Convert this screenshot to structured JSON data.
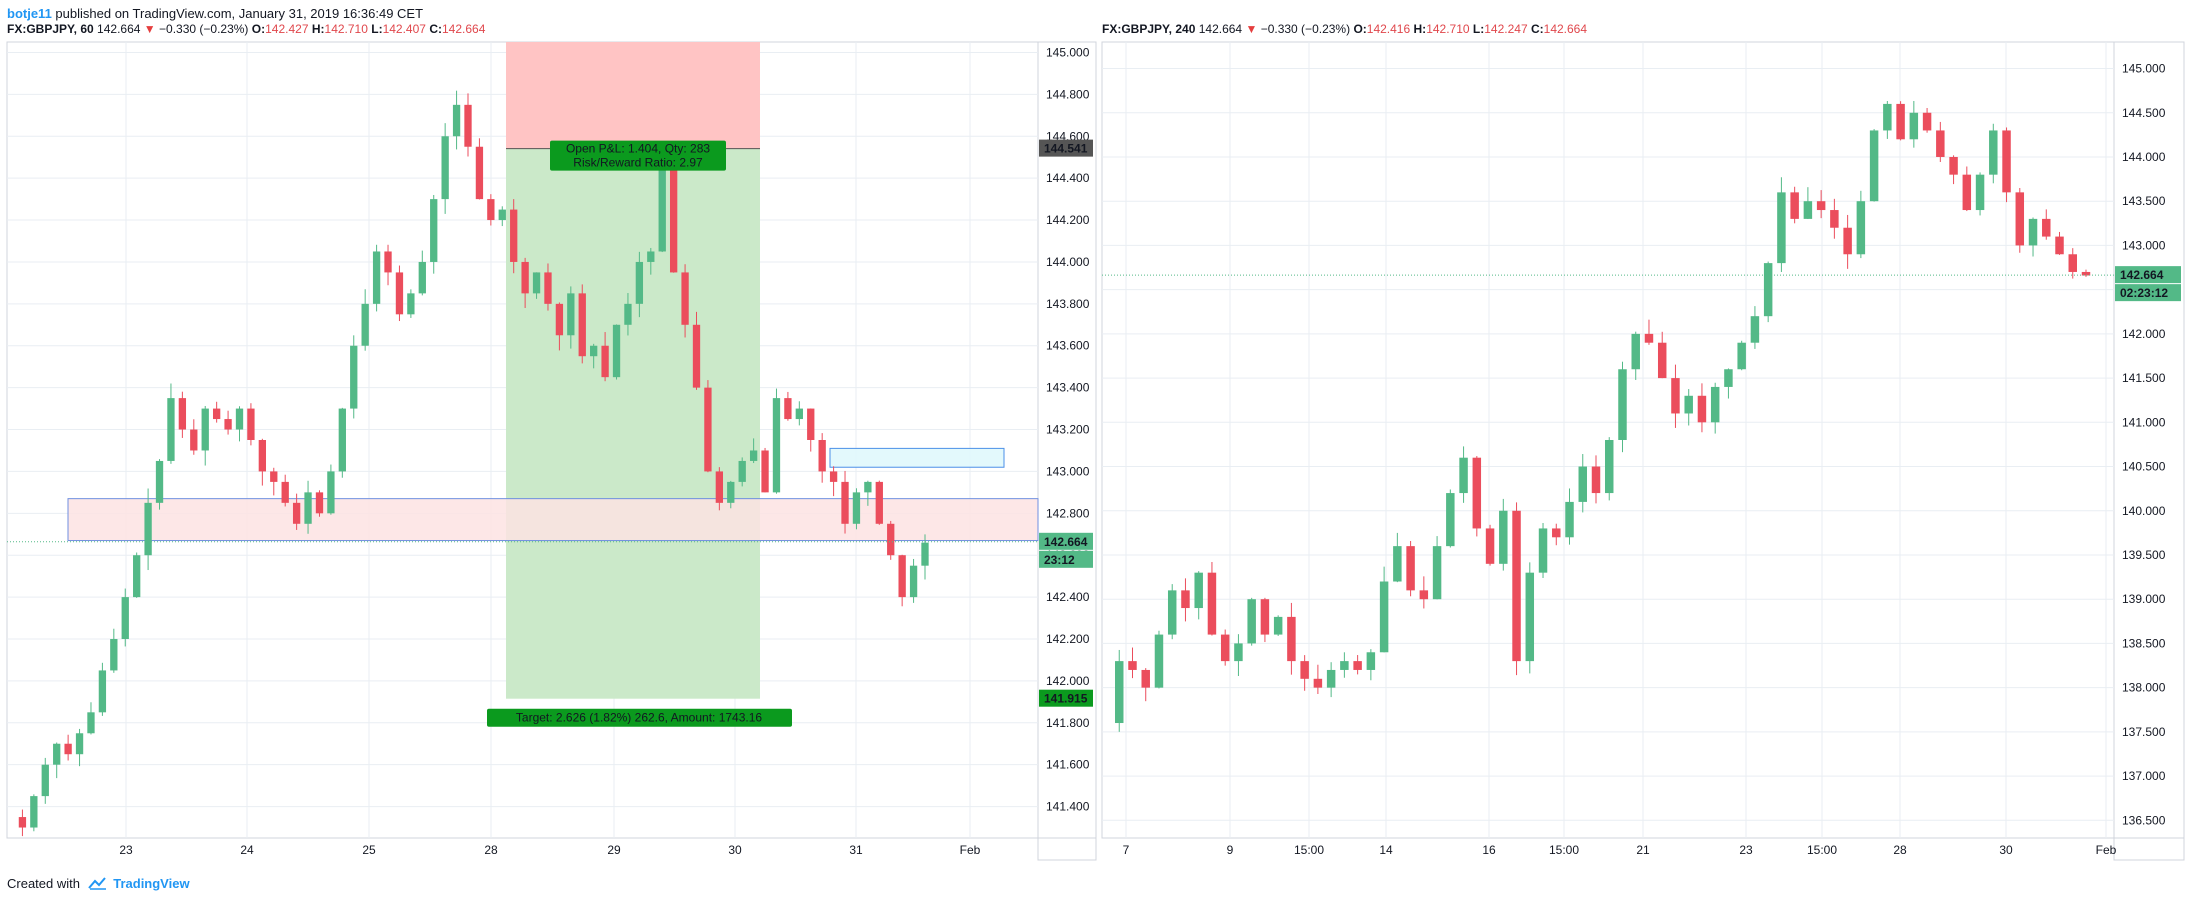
{
  "topline": {
    "user": "botje11",
    "text": "published on TradingView.com, January 31, 2019 16:36:49 CET"
  },
  "left_header": {
    "symbol": "FX:GBPJPY, 60",
    "last": "142.664",
    "change": "−0.330 (−0.23%)",
    "o_label": "O:",
    "o": "142.427",
    "h_label": "H:",
    "h": "142.710",
    "l_label": "L:",
    "l": "142.407",
    "c_label": "C:",
    "c": "142.664"
  },
  "right_header": {
    "symbol": "FX:GBPJPY, 240",
    "last": "142.664",
    "change": "−0.330 (−0.23%)",
    "o_label": "O:",
    "o": "142.416",
    "h_label": "H:",
    "h": "142.710",
    "l_label": "L:",
    "l": "142.247",
    "c_label": "C:",
    "c": "142.664"
  },
  "footer": {
    "prefix": "Created with",
    "brand": "TradingView"
  },
  "colors": {
    "up": "#53b987",
    "down": "#eb4d5c",
    "grid": "#e9eef3",
    "long_profit": "#cbe9c9",
    "long_stop": "#ffc4c4",
    "label_green": "#0b9a1e",
    "pink_zone": "#fde3e3",
    "pink_border": "#6f8fe0",
    "cyan_zone": "#def8fb",
    "cyan_border": "#4b8fe8"
  },
  "chart_data": [
    {
      "type": "candlestick",
      "symbol": "FX:GBPJPY",
      "interval": "60",
      "ylim": [
        141.25,
        145.05
      ],
      "y_ticks": [
        "141.400",
        "141.600",
        "141.800",
        "142.000",
        "142.200",
        "142.400",
        "142.600",
        "142.800",
        "143.000",
        "143.200",
        "143.400",
        "143.600",
        "143.800",
        "144.000",
        "144.200",
        "144.400",
        "144.600",
        "144.800",
        "145.000"
      ],
      "x_ticks": [
        "23",
        "24",
        "25",
        "28",
        "29",
        "30",
        "31",
        "Feb"
      ],
      "last_price_label": "142.664",
      "countdown_label": "23:12",
      "stop_price_label": "144.541",
      "target_price_label": "141.915",
      "position": {
        "type": "long-short tool",
        "entry": 144.541,
        "stop": 145.05,
        "target": 141.915,
        "pnl_text": "Open P&L: 1.404, Qty: 283",
        "rr_text": "Risk/Reward Ratio: 2.97",
        "target_text": "Target: 2.626 (1.82%) 262.6, Amount: 1743.16"
      },
      "zones": [
        {
          "kind": "support",
          "from": 142.67,
          "to": 142.87
        },
        {
          "kind": "resistance",
          "from": 143.02,
          "to": 143.11
        }
      ],
      "path": [
        141.35,
        141.3,
        141.45,
        141.6,
        141.7,
        141.65,
        141.75,
        141.85,
        142.05,
        142.2,
        142.4,
        142.6,
        142.85,
        143.05,
        143.35,
        143.2,
        143.1,
        143.3,
        143.25,
        143.2,
        143.3,
        143.15,
        143.0,
        142.95,
        142.85,
        142.75,
        142.9,
        142.8,
        143.0,
        143.3,
        143.6,
        143.8,
        144.05,
        143.95,
        143.75,
        143.85,
        144.0,
        144.3,
        144.6,
        144.75,
        144.55,
        144.3,
        144.2,
        144.25,
        144.0,
        143.85,
        143.95,
        143.8,
        143.65,
        143.85,
        143.55,
        143.6,
        143.45,
        143.7,
        143.8,
        144.0,
        144.05,
        144.45,
        143.95,
        143.7,
        143.4,
        143.0,
        142.85,
        142.95,
        143.05,
        143.1,
        142.9,
        143.35,
        143.25,
        143.3,
        143.15,
        143.0,
        142.95,
        142.75,
        142.9,
        142.95,
        142.75,
        142.6,
        142.4,
        142.55,
        142.66
      ]
    },
    {
      "type": "candlestick",
      "symbol": "FX:GBPJPY",
      "interval": "240",
      "ylim": [
        136.3,
        145.3
      ],
      "y_ticks": [
        "136.500",
        "137.000",
        "137.500",
        "138.000",
        "138.500",
        "139.000",
        "139.500",
        "140.000",
        "140.500",
        "141.000",
        "141.500",
        "142.000",
        "142.500",
        "143.000",
        "143.500",
        "144.000",
        "144.500",
        "145.000"
      ],
      "x_ticks": [
        "7",
        "9",
        "15:00",
        "14",
        "16",
        "15:00",
        "21",
        "23",
        "15:00",
        "28",
        "30",
        "Feb"
      ],
      "last_price_label": "142.664",
      "countdown_label": "02:23:12",
      "path": [
        137.6,
        138.3,
        138.2,
        138.0,
        138.6,
        139.1,
        138.9,
        139.3,
        138.6,
        138.3,
        138.5,
        139.0,
        138.6,
        138.8,
        138.3,
        138.1,
        138.0,
        138.2,
        138.3,
        138.2,
        138.4,
        139.2,
        139.6,
        139.1,
        139.0,
        139.6,
        140.2,
        140.6,
        139.8,
        139.4,
        140.0,
        138.3,
        139.3,
        139.8,
        139.7,
        140.1,
        140.5,
        140.2,
        140.8,
        141.6,
        142.0,
        141.9,
        141.5,
        141.1,
        141.3,
        141.0,
        141.4,
        141.6,
        141.9,
        142.2,
        142.8,
        143.6,
        143.3,
        143.5,
        143.4,
        143.2,
        142.9,
        143.5,
        144.3,
        144.6,
        144.2,
        144.5,
        144.3,
        144.0,
        143.8,
        143.4,
        143.8,
        144.3,
        143.6,
        143.0,
        143.3,
        143.1,
        142.9,
        142.7,
        142.66
      ]
    }
  ]
}
